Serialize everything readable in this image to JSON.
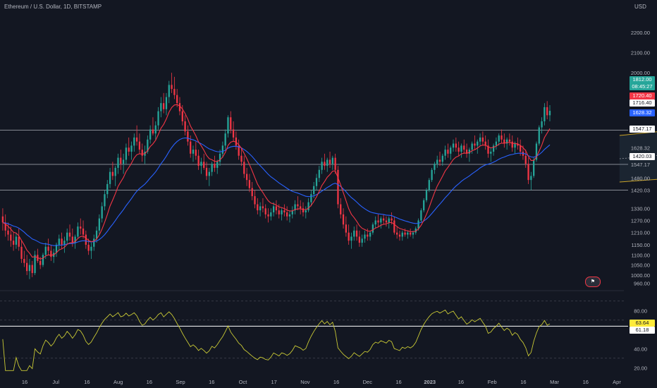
{
  "header": {
    "title": "Ethereum / U.S. Dollar, 1D, BITSTAMP",
    "currency": "USD"
  },
  "price_tags": {
    "last_price": "1812.00",
    "countdown": "08:45:27",
    "red_level": "1720.40",
    "level_1": "1716.40",
    "blue_level": "1628.32",
    "level_2": "1547.17",
    "level_3": "1420.03",
    "rsi_value": "63.64",
    "rsi_ma_value": "61.18"
  },
  "colors": {
    "background": "#131722",
    "up_candle": "#26a69a",
    "down_candle": "#f23645",
    "fast_ma": "#f23645",
    "slow_ma": "#2962ff",
    "channel": "#c9a227",
    "rsi_line": "#c9c935",
    "level_line": "#d1d4dc"
  },
  "chart_data": {
    "type": "candlestick",
    "price_axis_ticks": [
      2200,
      2100,
      2000,
      1940,
      1810,
      1716.4,
      1628.32,
      1547.17,
      1480,
      1420.03,
      1330,
      1270,
      1210,
      1150,
      1100,
      1050,
      1000,
      960
    ],
    "price_axis_labels": [
      "2200.00",
      "2100.00",
      "2000.00",
      "1940.00",
      "1810.00",
      "1716.40",
      "1628.32",
      "1547.17",
      "1480.00",
      "1420.03",
      "1330.00",
      "1270.00",
      "1210.00",
      "1150.00",
      "1100.00",
      "1050.00",
      "1000.00",
      "960.00"
    ],
    "price_range": [
      930,
      2290
    ],
    "time_axis_labels": [
      "16",
      "Jul",
      "16",
      "Aug",
      "16",
      "Sep",
      "16",
      "Oct",
      "17",
      "Nov",
      "16",
      "Dec",
      "16",
      "2023",
      "16",
      "Feb",
      "16",
      "Mar",
      "16",
      "Apr"
    ],
    "horizontal_levels": [
      1716.4,
      1547.17,
      1420.03
    ],
    "channel": {
      "start_index": 230,
      "end_index": 305,
      "upper_start": 1690,
      "upper_end": 1790,
      "lower_start": 1460,
      "lower_end": 1530
    },
    "rsi": {
      "axis_labels": [
        "80.00",
        "40.00",
        "20.00"
      ],
      "axis_values": [
        80,
        40,
        20
      ],
      "range": [
        15,
        95
      ],
      "guide_levels": [
        90,
        70,
        30
      ],
      "level_line": 63.64,
      "current": 63.64,
      "ma": 61.18
    },
    "candles": [
      [
        1290,
        1330,
        1220,
        1260
      ],
      [
        1260,
        1300,
        1190,
        1220
      ],
      [
        1220,
        1260,
        1170,
        1200
      ],
      [
        1200,
        1240,
        1140,
        1170
      ],
      [
        1170,
        1210,
        1120,
        1150
      ],
      [
        1150,
        1210,
        1130,
        1190
      ],
      [
        1190,
        1230,
        1120,
        1140
      ],
      [
        1140,
        1170,
        1060,
        1080
      ],
      [
        1080,
        1120,
        1040,
        1060
      ],
      [
        1060,
        1100,
        1000,
        1020
      ],
      [
        1020,
        1080,
        980,
        1050
      ],
      [
        1050,
        1070,
        990,
        1010
      ],
      [
        1010,
        1120,
        1000,
        1100
      ],
      [
        1100,
        1130,
        1060,
        1070
      ],
      [
        1070,
        1090,
        1030,
        1050
      ],
      [
        1050,
        1110,
        1040,
        1100
      ],
      [
        1100,
        1160,
        1080,
        1140
      ],
      [
        1140,
        1180,
        1100,
        1120
      ],
      [
        1120,
        1150,
        1070,
        1090
      ],
      [
        1090,
        1130,
        1060,
        1110
      ],
      [
        1110,
        1160,
        1090,
        1150
      ],
      [
        1150,
        1200,
        1120,
        1180
      ],
      [
        1180,
        1210,
        1130,
        1150
      ],
      [
        1150,
        1190,
        1110,
        1170
      ],
      [
        1170,
        1230,
        1150,
        1210
      ],
      [
        1210,
        1250,
        1170,
        1190
      ],
      [
        1190,
        1230,
        1140,
        1160
      ],
      [
        1160,
        1200,
        1130,
        1190
      ],
      [
        1190,
        1260,
        1180,
        1240
      ],
      [
        1240,
        1280,
        1200,
        1230
      ],
      [
        1230,
        1270,
        1180,
        1200
      ],
      [
        1200,
        1220,
        1130,
        1150
      ],
      [
        1150,
        1180,
        1100,
        1120
      ],
      [
        1120,
        1160,
        1080,
        1140
      ],
      [
        1140,
        1200,
        1120,
        1180
      ],
      [
        1180,
        1240,
        1160,
        1220
      ],
      [
        1220,
        1300,
        1200,
        1280
      ],
      [
        1280,
        1360,
        1260,
        1340
      ],
      [
        1340,
        1420,
        1320,
        1400
      ],
      [
        1400,
        1470,
        1380,
        1450
      ],
      [
        1450,
        1530,
        1430,
        1510
      ],
      [
        1510,
        1560,
        1470,
        1490
      ],
      [
        1490,
        1540,
        1440,
        1530
      ],
      [
        1530,
        1600,
        1500,
        1580
      ],
      [
        1580,
        1620,
        1520,
        1550
      ],
      [
        1550,
        1600,
        1500,
        1570
      ],
      [
        1570,
        1650,
        1550,
        1630
      ],
      [
        1630,
        1680,
        1590,
        1610
      ],
      [
        1610,
        1660,
        1570,
        1640
      ],
      [
        1640,
        1700,
        1610,
        1680
      ],
      [
        1680,
        1740,
        1640,
        1660
      ],
      [
        1660,
        1700,
        1600,
        1620
      ],
      [
        1620,
        1650,
        1560,
        1590
      ],
      [
        1590,
        1640,
        1550,
        1610
      ],
      [
        1610,
        1690,
        1600,
        1670
      ],
      [
        1670,
        1740,
        1650,
        1720
      ],
      [
        1720,
        1780,
        1690,
        1700
      ],
      [
        1700,
        1760,
        1670,
        1740
      ],
      [
        1740,
        1830,
        1720,
        1810
      ],
      [
        1810,
        1880,
        1780,
        1850
      ],
      [
        1850,
        1900,
        1800,
        1820
      ],
      [
        1820,
        1900,
        1790,
        1880
      ],
      [
        1880,
        1960,
        1850,
        1940
      ],
      [
        1940,
        2000,
        1900,
        1920
      ],
      [
        1920,
        1980,
        1870,
        1890
      ],
      [
        1890,
        1920,
        1830,
        1850
      ],
      [
        1850,
        1880,
        1790,
        1810
      ],
      [
        1810,
        1840,
        1740,
        1760
      ],
      [
        1760,
        1790,
        1690,
        1710
      ],
      [
        1710,
        1740,
        1640,
        1660
      ],
      [
        1660,
        1690,
        1580,
        1600
      ],
      [
        1600,
        1640,
        1560,
        1620
      ],
      [
        1620,
        1660,
        1570,
        1590
      ],
      [
        1590,
        1620,
        1520,
        1540
      ],
      [
        1540,
        1580,
        1500,
        1560
      ],
      [
        1560,
        1600,
        1520,
        1530
      ],
      [
        1530,
        1560,
        1470,
        1490
      ],
      [
        1490,
        1530,
        1440,
        1510
      ],
      [
        1510,
        1560,
        1490,
        1550
      ],
      [
        1550,
        1590,
        1510,
        1530
      ],
      [
        1530,
        1570,
        1500,
        1560
      ],
      [
        1560,
        1620,
        1540,
        1600
      ],
      [
        1600,
        1660,
        1580,
        1640
      ],
      [
        1640,
        1720,
        1620,
        1700
      ],
      [
        1700,
        1790,
        1680,
        1780
      ],
      [
        1780,
        1810,
        1700,
        1720
      ],
      [
        1720,
        1760,
        1660,
        1680
      ],
      [
        1680,
        1710,
        1620,
        1640
      ],
      [
        1640,
        1670,
        1570,
        1590
      ],
      [
        1590,
        1630,
        1540,
        1560
      ],
      [
        1560,
        1590,
        1480,
        1500
      ],
      [
        1500,
        1530,
        1440,
        1470
      ],
      [
        1470,
        1500,
        1410,
        1430
      ],
      [
        1430,
        1460,
        1370,
        1390
      ],
      [
        1390,
        1420,
        1330,
        1350
      ],
      [
        1350,
        1380,
        1300,
        1320
      ],
      [
        1320,
        1360,
        1290,
        1340
      ],
      [
        1340,
        1380,
        1310,
        1330
      ],
      [
        1330,
        1350,
        1280,
        1300
      ],
      [
        1300,
        1330,
        1260,
        1290
      ],
      [
        1290,
        1330,
        1270,
        1310
      ],
      [
        1310,
        1360,
        1290,
        1340
      ],
      [
        1340,
        1370,
        1300,
        1320
      ],
      [
        1320,
        1350,
        1280,
        1300
      ],
      [
        1300,
        1330,
        1270,
        1320
      ],
      [
        1320,
        1350,
        1290,
        1310
      ],
      [
        1310,
        1340,
        1270,
        1290
      ],
      [
        1290,
        1320,
        1260,
        1300
      ],
      [
        1300,
        1340,
        1280,
        1320
      ],
      [
        1320,
        1370,
        1300,
        1350
      ],
      [
        1350,
        1390,
        1320,
        1340
      ],
      [
        1340,
        1370,
        1300,
        1330
      ],
      [
        1330,
        1360,
        1290,
        1310
      ],
      [
        1310,
        1340,
        1280,
        1320
      ],
      [
        1320,
        1380,
        1310,
        1360
      ],
      [
        1360,
        1420,
        1340,
        1400
      ],
      [
        1400,
        1460,
        1380,
        1440
      ],
      [
        1440,
        1500,
        1420,
        1480
      ],
      [
        1480,
        1540,
        1460,
        1520
      ],
      [
        1520,
        1580,
        1500,
        1560
      ],
      [
        1560,
        1600,
        1520,
        1540
      ],
      [
        1540,
        1580,
        1510,
        1570
      ],
      [
        1570,
        1610,
        1530,
        1550
      ],
      [
        1550,
        1590,
        1520,
        1580
      ],
      [
        1580,
        1600,
        1500,
        1520
      ],
      [
        1520,
        1540,
        1330,
        1350
      ],
      [
        1350,
        1380,
        1280,
        1300
      ],
      [
        1300,
        1330,
        1230,
        1250
      ],
      [
        1250,
        1290,
        1190,
        1210
      ],
      [
        1210,
        1250,
        1150,
        1170
      ],
      [
        1170,
        1210,
        1130,
        1190
      ],
      [
        1190,
        1240,
        1170,
        1220
      ],
      [
        1220,
        1250,
        1170,
        1190
      ],
      [
        1190,
        1220,
        1140,
        1160
      ],
      [
        1160,
        1200,
        1140,
        1180
      ],
      [
        1180,
        1220,
        1160,
        1200
      ],
      [
        1200,
        1230,
        1170,
        1190
      ],
      [
        1190,
        1220,
        1170,
        1210
      ],
      [
        1210,
        1260,
        1200,
        1250
      ],
      [
        1250,
        1290,
        1230,
        1270
      ],
      [
        1270,
        1300,
        1240,
        1260
      ],
      [
        1260,
        1290,
        1230,
        1280
      ],
      [
        1280,
        1300,
        1250,
        1270
      ],
      [
        1270,
        1290,
        1240,
        1260
      ],
      [
        1260,
        1290,
        1230,
        1280
      ],
      [
        1280,
        1310,
        1250,
        1270
      ],
      [
        1270,
        1290,
        1200,
        1210
      ],
      [
        1210,
        1240,
        1180,
        1200
      ],
      [
        1200,
        1220,
        1170,
        1190
      ],
      [
        1190,
        1220,
        1170,
        1210
      ],
      [
        1210,
        1230,
        1190,
        1200
      ],
      [
        1200,
        1220,
        1180,
        1210
      ],
      [
        1210,
        1230,
        1190,
        1200
      ],
      [
        1200,
        1220,
        1180,
        1210
      ],
      [
        1210,
        1240,
        1200,
        1230
      ],
      [
        1230,
        1280,
        1220,
        1270
      ],
      [
        1270,
        1330,
        1260,
        1320
      ],
      [
        1320,
        1380,
        1310,
        1370
      ],
      [
        1370,
        1430,
        1360,
        1420
      ],
      [
        1420,
        1480,
        1410,
        1470
      ],
      [
        1470,
        1530,
        1460,
        1520
      ],
      [
        1520,
        1560,
        1500,
        1550
      ],
      [
        1550,
        1590,
        1530,
        1570
      ],
      [
        1570,
        1610,
        1540,
        1560
      ],
      [
        1560,
        1600,
        1540,
        1590
      ],
      [
        1590,
        1640,
        1570,
        1620
      ],
      [
        1620,
        1650,
        1580,
        1600
      ],
      [
        1600,
        1640,
        1570,
        1630
      ],
      [
        1630,
        1670,
        1610,
        1650
      ],
      [
        1650,
        1680,
        1610,
        1630
      ],
      [
        1630,
        1660,
        1590,
        1610
      ],
      [
        1610,
        1650,
        1580,
        1640
      ],
      [
        1640,
        1670,
        1600,
        1620
      ],
      [
        1620,
        1650,
        1580,
        1600
      ],
      [
        1600,
        1630,
        1560,
        1620
      ],
      [
        1620,
        1660,
        1600,
        1650
      ],
      [
        1650,
        1690,
        1620,
        1640
      ],
      [
        1640,
        1670,
        1600,
        1660
      ],
      [
        1660,
        1700,
        1640,
        1680
      ],
      [
        1680,
        1710,
        1640,
        1660
      ],
      [
        1660,
        1690,
        1620,
        1640
      ],
      [
        1640,
        1670,
        1580,
        1600
      ],
      [
        1600,
        1630,
        1560,
        1610
      ],
      [
        1610,
        1650,
        1590,
        1640
      ],
      [
        1640,
        1680,
        1620,
        1660
      ],
      [
        1660,
        1700,
        1640,
        1690
      ],
      [
        1690,
        1720,
        1650,
        1670
      ],
      [
        1670,
        1700,
        1630,
        1650
      ],
      [
        1650,
        1680,
        1620,
        1670
      ],
      [
        1670,
        1700,
        1640,
        1660
      ],
      [
        1660,
        1690,
        1610,
        1630
      ],
      [
        1630,
        1660,
        1600,
        1650
      ],
      [
        1650,
        1680,
        1620,
        1640
      ],
      [
        1640,
        1670,
        1590,
        1610
      ],
      [
        1610,
        1640,
        1570,
        1590
      ],
      [
        1590,
        1620,
        1530,
        1550
      ],
      [
        1550,
        1580,
        1450,
        1470
      ],
      [
        1470,
        1510,
        1420,
        1490
      ],
      [
        1490,
        1580,
        1480,
        1570
      ],
      [
        1570,
        1660,
        1560,
        1650
      ],
      [
        1650,
        1740,
        1640,
        1730
      ],
      [
        1730,
        1780,
        1700,
        1760
      ],
      [
        1760,
        1850,
        1740,
        1830
      ],
      [
        1830,
        1860,
        1770,
        1790
      ],
      [
        1790,
        1840,
        1760,
        1812
      ]
    ]
  }
}
